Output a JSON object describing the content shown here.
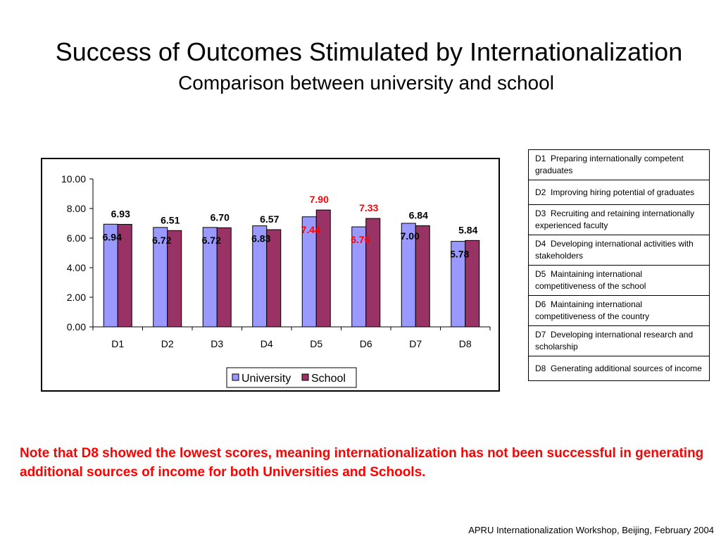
{
  "slide": {
    "title": "Success of Outcomes Stimulated by Internationalization",
    "subtitle": "Comparison between university and school",
    "note": "Note that D8 showed the lowest scores, meaning internationalization has not been successful in generating additional sources of income for both Universities and Schools.",
    "footer": "APRU Internationalization Workshop, Beijing, February 2004"
  },
  "definitions": [
    {
      "code": "D1",
      "text": "Preparing internationally competent graduates"
    },
    {
      "code": "D2",
      "text": "Improving hiring potential of graduates"
    },
    {
      "code": "D3",
      "text": "Recruiting and retaining internationally experienced faculty"
    },
    {
      "code": "D4",
      "text": "Developing international activities with stakeholders"
    },
    {
      "code": "D5",
      "text": "Maintaining international competitiveness of the school"
    },
    {
      "code": "D6",
      "text": "Maintaining international competitiveness of the country"
    },
    {
      "code": "D7",
      "text": "Developing international research and scholarship"
    },
    {
      "code": "D8",
      "text": "Generating additional sources of income"
    }
  ],
  "chart_data": {
    "type": "bar",
    "categories": [
      "D1",
      "D2",
      "D3",
      "D4",
      "D5",
      "D6",
      "D7",
      "D8"
    ],
    "series": [
      {
        "name": "University",
        "color": "#9999ff",
        "values": [
          6.94,
          6.72,
          6.72,
          6.83,
          7.44,
          6.76,
          7.0,
          5.78
        ],
        "labels": [
          "6.94",
          "6.72",
          "6.72",
          "6.83",
          "7.44",
          "6.76",
          "7.00",
          "5.78"
        ],
        "label_colors": [
          "#000000",
          "#000000",
          "#000000",
          "#000000",
          "#ff0000",
          "#ff0000",
          "#000000",
          "#000000"
        ]
      },
      {
        "name": "School",
        "color": "#993366",
        "values": [
          6.93,
          6.51,
          6.7,
          6.57,
          7.9,
          7.33,
          6.84,
          5.84
        ],
        "labels": [
          "6.93",
          "6.51",
          "6.70",
          "6.57",
          "7.90",
          "7.33",
          "6.84",
          "5.84"
        ],
        "label_colors": [
          "#000000",
          "#000000",
          "#000000",
          "#000000",
          "#ff0000",
          "#ff0000",
          "#000000",
          "#000000"
        ]
      }
    ],
    "ylim": [
      0,
      10
    ],
    "yticks": [
      "0.00",
      "2.00",
      "4.00",
      "6.00",
      "8.00",
      "10.00"
    ],
    "grid": false,
    "legend": "bottom-center",
    "title": "",
    "xlabel": "",
    "ylabel": ""
  }
}
